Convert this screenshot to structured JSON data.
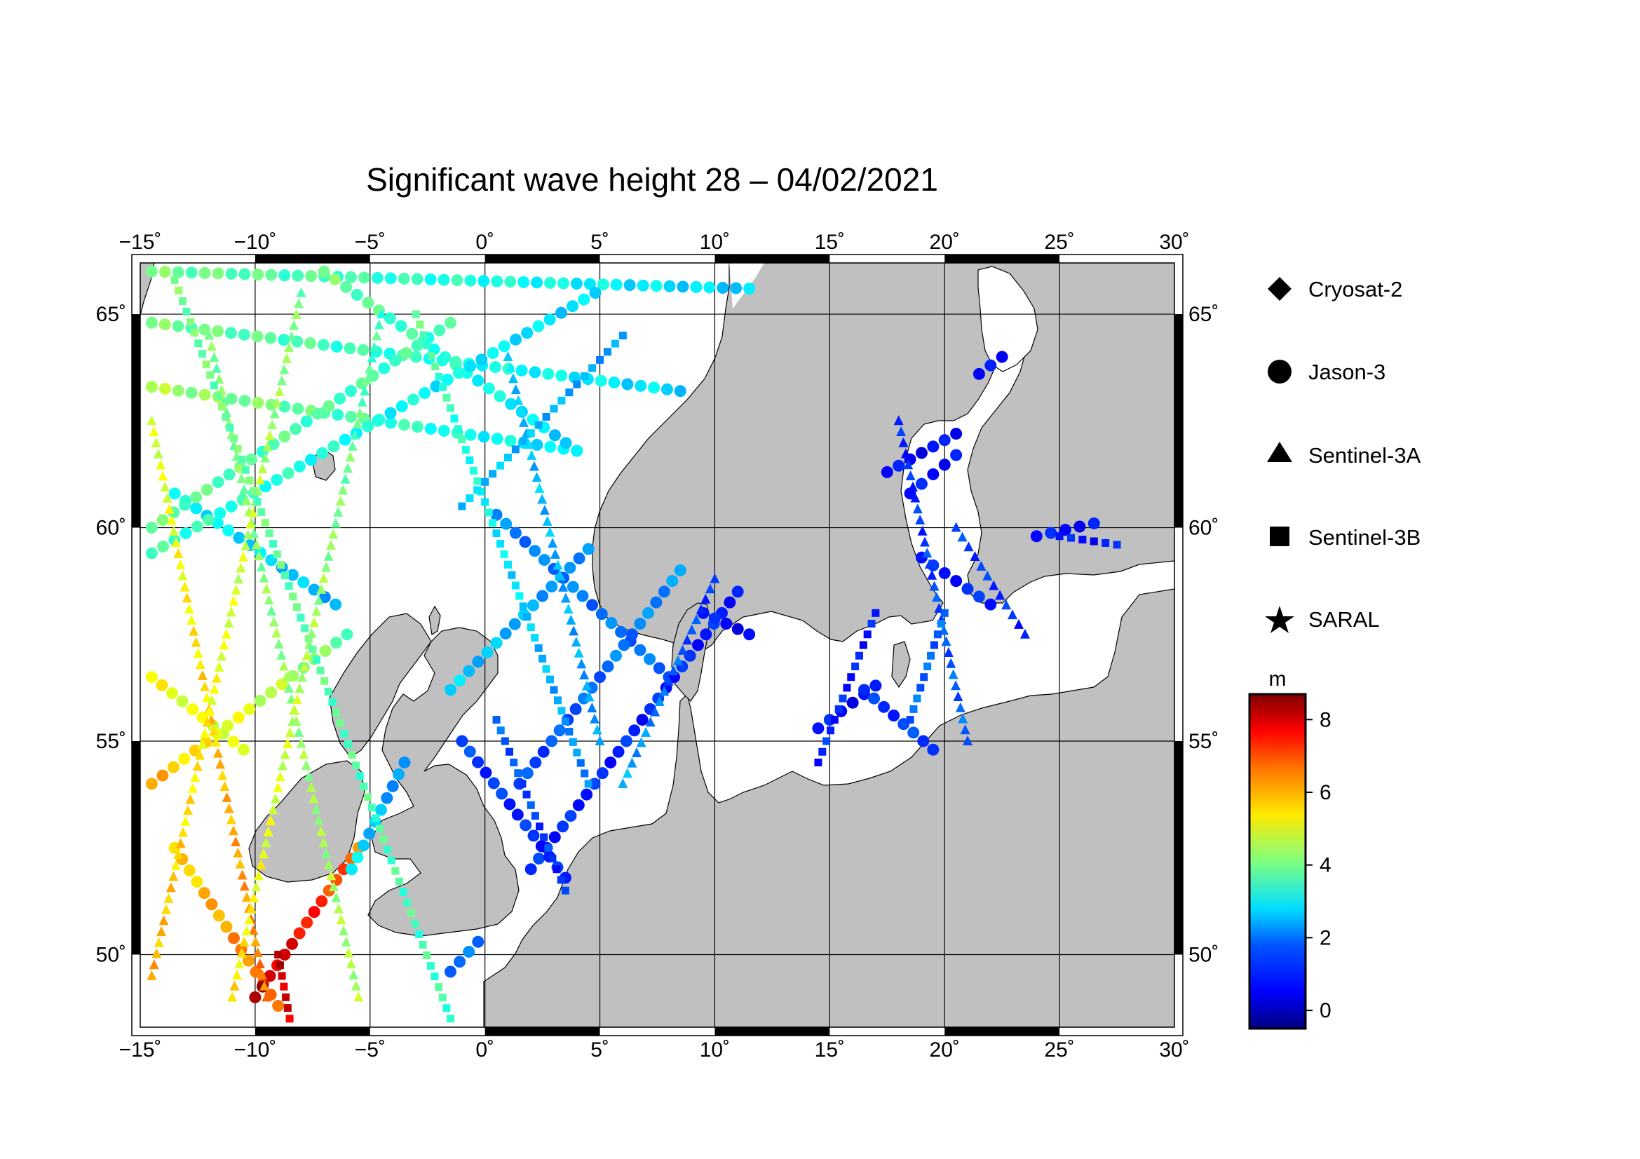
{
  "title": "Significant wave height 28 – 04/02/2021",
  "map": {
    "lon_range": [
      -15,
      30
    ],
    "lat_range": [
      48.3,
      66.2
    ],
    "lon_ticks": [
      {
        "value": -15,
        "label": "−15˚"
      },
      {
        "value": -10,
        "label": "−10˚"
      },
      {
        "value": -5,
        "label": "−5˚"
      },
      {
        "value": 0,
        "label": "0˚"
      },
      {
        "value": 5,
        "label": "5˚"
      },
      {
        "value": 10,
        "label": "10˚"
      },
      {
        "value": 15,
        "label": "15˚"
      },
      {
        "value": 20,
        "label": "20˚"
      },
      {
        "value": 25,
        "label": "25˚"
      },
      {
        "value": 30,
        "label": "30˚"
      }
    ],
    "lat_ticks": [
      {
        "value": 50,
        "label": "50˚"
      },
      {
        "value": 55,
        "label": "55˚"
      },
      {
        "value": 60,
        "label": "60˚"
      },
      {
        "value": 65,
        "label": "65˚"
      }
    ],
    "land_color": "#c0c0c0",
    "sea_color": "#ffffff",
    "grid": true
  },
  "legend": {
    "items": [
      {
        "symbol": "diamond",
        "label": "Cryosat-2"
      },
      {
        "symbol": "circle",
        "label": "Jason-3"
      },
      {
        "symbol": "triangle",
        "label": "Sentinel-3A"
      },
      {
        "symbol": "square",
        "label": "Sentinel-3B"
      },
      {
        "symbol": "star",
        "label": "SARAL"
      }
    ]
  },
  "colorbar": {
    "unit": "m",
    "min": -0.5,
    "max": 8.7,
    "ticks": [
      {
        "value": 0,
        "label": "0"
      },
      {
        "value": 2,
        "label": "2"
      },
      {
        "value": 4,
        "label": "4"
      },
      {
        "value": 6,
        "label": "6"
      },
      {
        "value": 8,
        "label": "8"
      }
    ],
    "colormap": "jet"
  },
  "chart_data": {
    "type": "scatter",
    "title": "Significant wave height 28 – 04/02/2021",
    "xlabel": "",
    "ylabel": "",
    "xlim": [
      -15,
      30
    ],
    "ylim": [
      48.3,
      66.2
    ],
    "value_unit": "m",
    "tracks": [
      {
        "satellite": "Jason-3",
        "symbol": "circle",
        "from": [
          -14.5,
          66.0
        ],
        "to": [
          11.5,
          65.6
        ],
        "swh_from": 4.0,
        "swh_to": 2.5
      },
      {
        "satellite": "Jason-3",
        "symbol": "circle",
        "from": [
          -14.5,
          64.8
        ],
        "to": [
          8.5,
          63.2
        ],
        "swh_from": 4.0,
        "swh_to": 2.6
      },
      {
        "satellite": "Jason-3",
        "symbol": "circle",
        "from": [
          -14.5,
          63.3
        ],
        "to": [
          4.0,
          61.8
        ],
        "swh_from": 4.5,
        "swh_to": 2.6
      },
      {
        "satellite": "Jason-3",
        "symbol": "circle",
        "from": [
          -13.5,
          60.8
        ],
        "to": [
          -6.5,
          58.2
        ],
        "swh_from": 3.0,
        "swh_to": 2.2
      },
      {
        "satellite": "Jason-3",
        "symbol": "circle",
        "from": [
          -7.0,
          66.0
        ],
        "to": [
          4.0,
          61.8
        ],
        "swh_from": 4.0,
        "swh_to": 2.5
      },
      {
        "satellite": "Jason-3",
        "symbol": "circle",
        "from": [
          -14.5,
          60.0
        ],
        "to": [
          -1.5,
          64.8
        ],
        "swh_from": 3.8,
        "swh_to": 3.5
      },
      {
        "satellite": "Jason-3",
        "symbol": "circle",
        "from": [
          -14.5,
          59.4
        ],
        "to": [
          4.8,
          65.5
        ],
        "swh_from": 3.5,
        "swh_to": 2.6
      },
      {
        "satellite": "Jason-3",
        "symbol": "circle",
        "from": [
          -14.5,
          56.5
        ],
        "to": [
          -10.5,
          54.8
        ],
        "swh_from": 5.2,
        "swh_to": 4.8
      },
      {
        "satellite": "Jason-3",
        "symbol": "circle",
        "from": [
          -14.5,
          54.0
        ],
        "to": [
          -6.0,
          57.5
        ],
        "swh_from": 6.0,
        "swh_to": 3.8
      },
      {
        "satellite": "Jason-3",
        "symbol": "circle",
        "from": [
          -13.5,
          52.5
        ],
        "to": [
          -9.0,
          48.8
        ],
        "swh_from": 5.5,
        "swh_to": 6.8
      },
      {
        "satellite": "Jason-3",
        "symbol": "circle",
        "from": [
          -10.0,
          49.0
        ],
        "to": [
          -5.5,
          52.5
        ],
        "swh_from": 8.3,
        "swh_to": 6.5
      },
      {
        "satellite": "Jason-3",
        "symbol": "circle",
        "from": [
          -5.8,
          52.0
        ],
        "to": [
          -3.5,
          54.5
        ],
        "swh_from": 2.8,
        "swh_to": 1.8
      },
      {
        "satellite": "Jason-3",
        "symbol": "circle",
        "from": [
          -1.5,
          56.2
        ],
        "to": [
          4.5,
          59.5
        ],
        "swh_from": 2.5,
        "swh_to": 2.0
      },
      {
        "satellite": "Jason-3",
        "symbol": "circle",
        "from": [
          0.5,
          60.3
        ],
        "to": [
          8.0,
          56.5
        ],
        "swh_from": 1.8,
        "swh_to": 1.6
      },
      {
        "satellite": "Jason-3",
        "symbol": "circle",
        "from": [
          1.5,
          54.0
        ],
        "to": [
          8.5,
          59.0
        ],
        "swh_from": 1.2,
        "swh_to": 2.0
      },
      {
        "satellite": "Jason-3",
        "symbol": "circle",
        "from": [
          2.0,
          52.0
        ],
        "to": [
          11.0,
          58.5
        ],
        "swh_from": 1.0,
        "swh_to": 0.9
      },
      {
        "satellite": "Jason-3",
        "symbol": "circle",
        "from": [
          -1.0,
          55.0
        ],
        "to": [
          3.5,
          51.8
        ],
        "swh_from": 1.2,
        "swh_to": 0.9
      },
      {
        "satellite": "Jason-3",
        "symbol": "circle",
        "from": [
          9.5,
          58.0
        ],
        "to": [
          11.5,
          57.5
        ],
        "swh_from": 0.8,
        "swh_to": 0.6
      },
      {
        "satellite": "Jason-3",
        "symbol": "circle",
        "from": [
          -0.3,
          50.3
        ],
        "to": [
          -1.5,
          49.6
        ],
        "swh_from": 1.5,
        "swh_to": 1.8
      },
      {
        "satellite": "Jason-3",
        "symbol": "circle",
        "from": [
          14.5,
          55.3
        ],
        "to": [
          17.0,
          56.3
        ],
        "swh_from": 0.8,
        "swh_to": 0.6
      },
      {
        "satellite": "Jason-3",
        "symbol": "circle",
        "from": [
          16.5,
          56.2
        ],
        "to": [
          19.5,
          54.8
        ],
        "swh_from": 1.0,
        "swh_to": 1.3
      },
      {
        "satellite": "Jason-3",
        "symbol": "circle",
        "from": [
          17.5,
          61.3
        ],
        "to": [
          20.5,
          62.2
        ],
        "swh_from": 0.6,
        "swh_to": 0.7
      },
      {
        "satellite": "Jason-3",
        "symbol": "circle",
        "from": [
          18.5,
          60.8
        ],
        "to": [
          20.5,
          61.7
        ],
        "swh_from": 0.7,
        "swh_to": 0.8
      },
      {
        "satellite": "Jason-3",
        "symbol": "circle",
        "from": [
          21.5,
          63.6
        ],
        "to": [
          22.5,
          64.0
        ],
        "swh_from": 0.6,
        "swh_to": 0.6
      },
      {
        "satellite": "Jason-3",
        "symbol": "circle",
        "from": [
          24.0,
          59.8
        ],
        "to": [
          26.5,
          60.1
        ],
        "swh_from": 0.7,
        "swh_to": 0.8
      },
      {
        "satellite": "Jason-3",
        "symbol": "circle",
        "from": [
          19.0,
          59.3
        ],
        "to": [
          22.0,
          58.2
        ],
        "swh_from": 0.8,
        "swh_to": 1.0
      },
      {
        "satellite": "Sentinel-3A",
        "symbol": "triangle",
        "from": [
          -14.5,
          62.5
        ],
        "to": [
          -9.5,
          49.0
        ],
        "swh_from": 4.8,
        "swh_to": 6.5
      },
      {
        "satellite": "Sentinel-3A",
        "symbol": "triangle",
        "from": [
          -12.0,
          64.5
        ],
        "to": [
          -5.5,
          49.0
        ],
        "swh_from": 4.0,
        "swh_to": 4.5
      },
      {
        "satellite": "Sentinel-3A",
        "symbol": "triangle",
        "from": [
          -14.5,
          49.5
        ],
        "to": [
          -8.0,
          65.5
        ],
        "swh_from": 6.0,
        "swh_to": 4.0
      },
      {
        "satellite": "Sentinel-3A",
        "symbol": "triangle",
        "from": [
          -11.0,
          49.0
        ],
        "to": [
          -4.5,
          65.0
        ],
        "swh_from": 5.5,
        "swh_to": 3.5
      },
      {
        "satellite": "Sentinel-3A",
        "symbol": "triangle",
        "from": [
          1.0,
          64.0
        ],
        "to": [
          5.0,
          55.0
        ],
        "swh_from": 2.5,
        "swh_to": 2.0
      },
      {
        "satellite": "Sentinel-3A",
        "symbol": "triangle",
        "from": [
          6.0,
          54.0
        ],
        "to": [
          10.0,
          58.8
        ],
        "swh_from": 2.2,
        "swh_to": 1.0
      },
      {
        "satellite": "Sentinel-3A",
        "symbol": "triangle",
        "from": [
          18.0,
          62.5
        ],
        "to": [
          21.0,
          55.0
        ],
        "swh_from": 0.9,
        "swh_to": 1.6
      },
      {
        "satellite": "Sentinel-3A",
        "symbol": "triangle",
        "from": [
          20.5,
          60.0
        ],
        "to": [
          23.5,
          57.5
        ],
        "swh_from": 1.2,
        "swh_to": 1.0
      },
      {
        "satellite": "Sentinel-3B",
        "symbol": "square",
        "from": [
          -13.5,
          65.8
        ],
        "to": [
          -1.5,
          48.5
        ],
        "swh_from": 4.0,
        "swh_to": 3.5
      },
      {
        "satellite": "Sentinel-3B",
        "symbol": "square",
        "from": [
          -9.0,
          50.0
        ],
        "to": [
          -8.5,
          48.5
        ],
        "swh_from": 8.2,
        "swh_to": 7.8
      },
      {
        "satellite": "Sentinel-3B",
        "symbol": "square",
        "from": [
          -3.0,
          65.0
        ],
        "to": [
          4.5,
          54.0
        ],
        "swh_from": 3.8,
        "swh_to": 1.8
      },
      {
        "satellite": "Sentinel-3B",
        "symbol": "square",
        "from": [
          0.5,
          55.5
        ],
        "to": [
          3.5,
          51.5
        ],
        "swh_from": 1.5,
        "swh_to": 1.0
      },
      {
        "satellite": "Sentinel-3B",
        "symbol": "square",
        "from": [
          6.0,
          64.5
        ],
        "to": [
          -1.0,
          60.5
        ],
        "swh_from": 2.0,
        "swh_to": 2.5
      },
      {
        "satellite": "Sentinel-3B",
        "symbol": "square",
        "from": [
          17.0,
          58.0
        ],
        "to": [
          14.5,
          54.5
        ],
        "swh_from": 0.8,
        "swh_to": 1.0
      },
      {
        "satellite": "Sentinel-3B",
        "symbol": "square",
        "from": [
          20.0,
          58.0
        ],
        "to": [
          18.5,
          55.5
        ],
        "swh_from": 1.5,
        "swh_to": 1.6
      },
      {
        "satellite": "Sentinel-3B",
        "symbol": "square",
        "from": [
          25.0,
          59.8
        ],
        "to": [
          27.5,
          59.6
        ],
        "swh_from": 0.8,
        "swh_to": 0.8
      }
    ]
  }
}
